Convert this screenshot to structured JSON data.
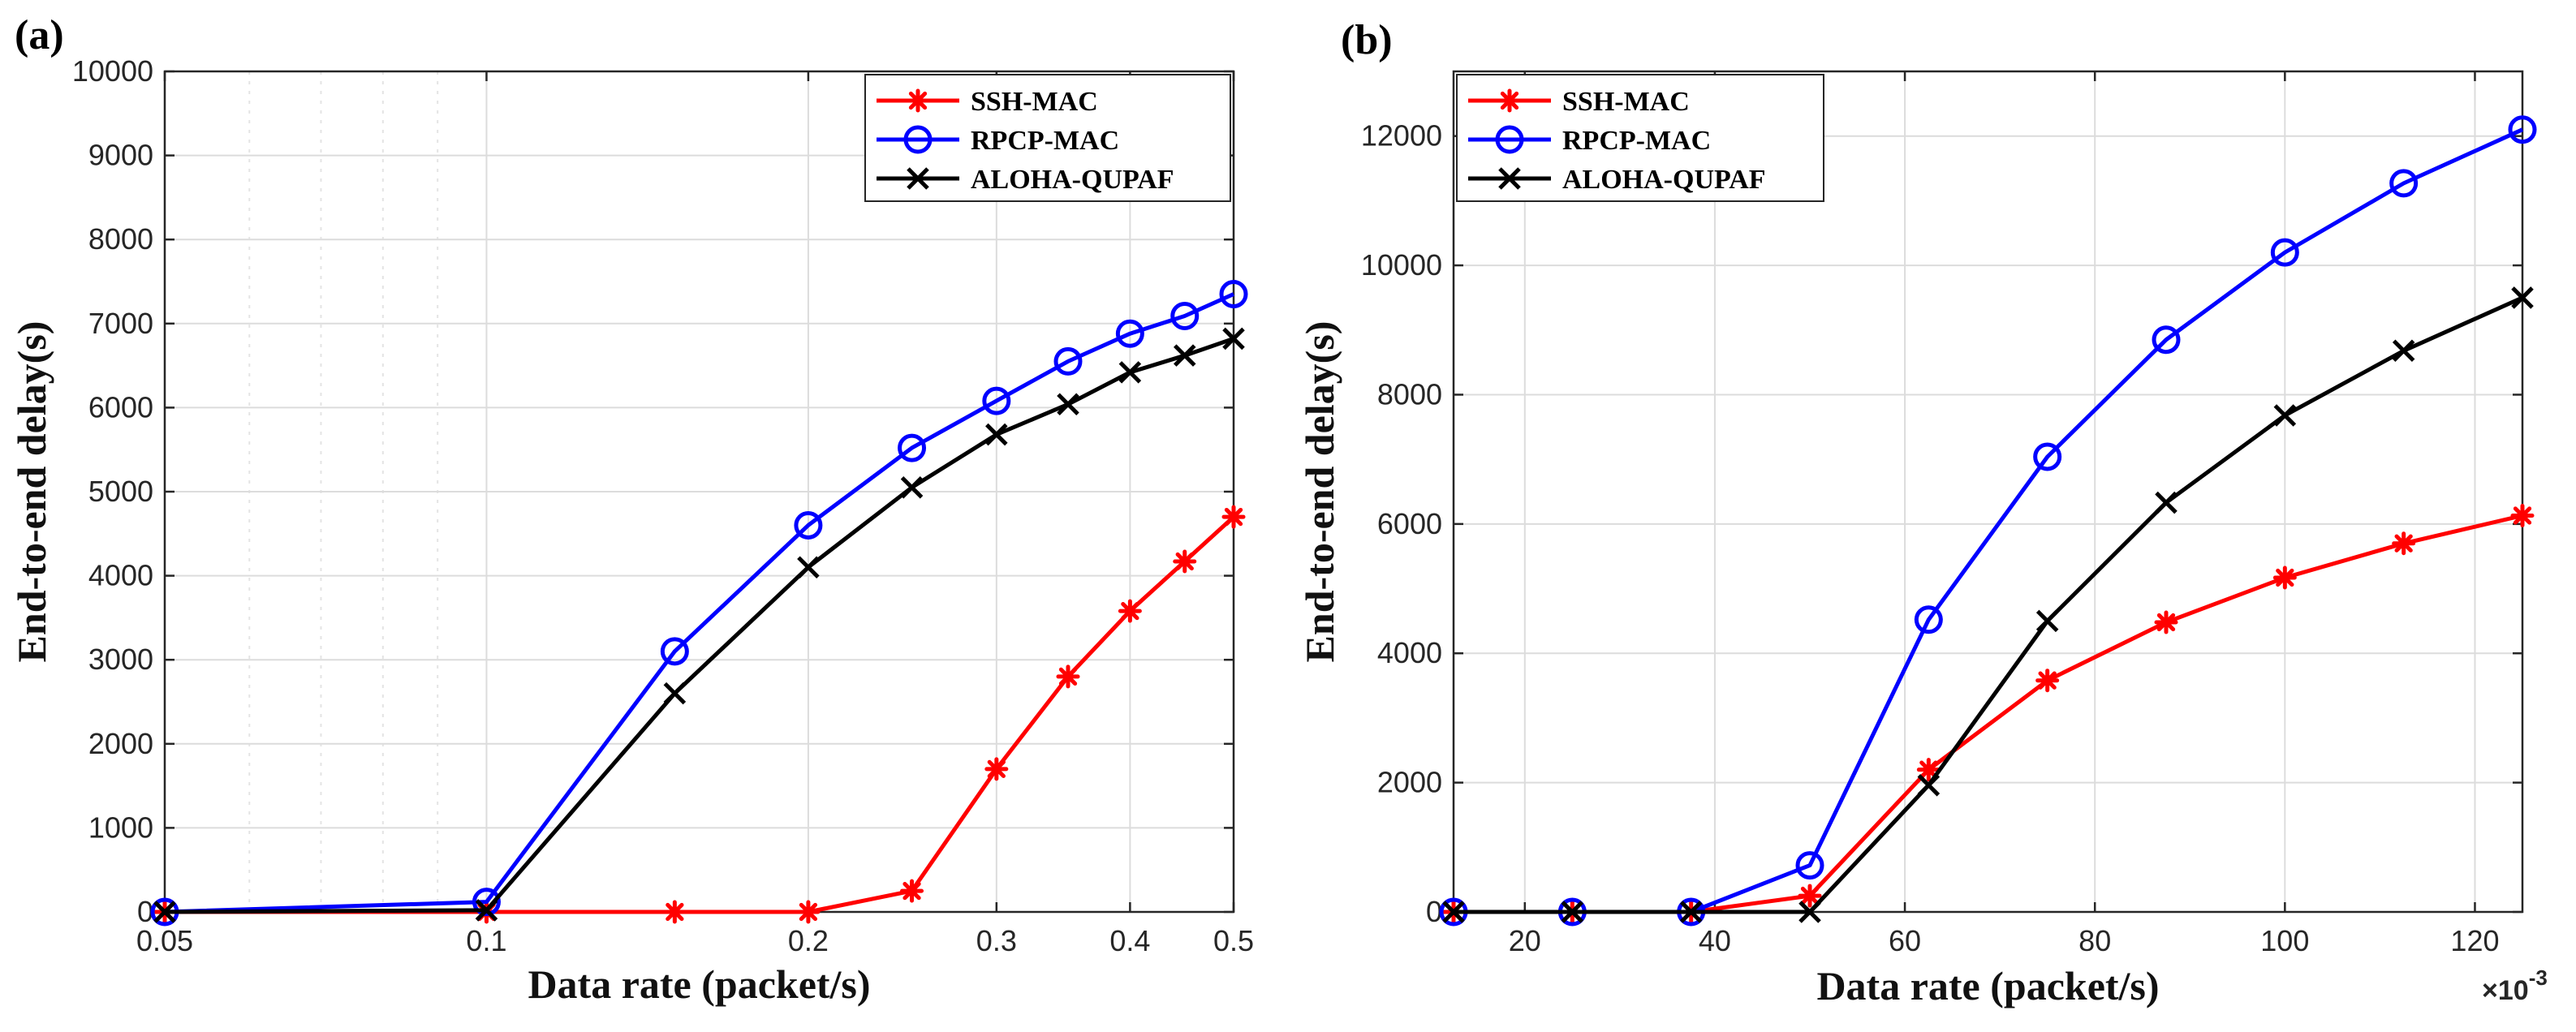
{
  "chart_data": [
    {
      "panel_label": "(a)",
      "type": "line",
      "xscale": "log",
      "xlabel": "Data rate (packet/s)",
      "ylabel": "End-to-end delay(s)",
      "xlim": [
        0.05,
        0.5
      ],
      "ylim": [
        0,
        10000
      ],
      "xticks": [
        0.05,
        0.1,
        0.2,
        0.3,
        0.4,
        0.5
      ],
      "xtick_labels": [
        "0.05",
        "0.1",
        "0.2",
        "0.3",
        "0.4",
        "0.5"
      ],
      "yticks": [
        0,
        1000,
        2000,
        3000,
        4000,
        5000,
        6000,
        7000,
        8000,
        9000,
        10000
      ],
      "ytick_labels": [
        "0",
        "1000",
        "2000",
        "3000",
        "4000",
        "5000",
        "6000",
        "7000",
        "8000",
        "9000",
        "10000"
      ],
      "grid": true,
      "legend_position": "top-right",
      "series": [
        {
          "name": "SSH-MAC",
          "color": "#ff0000",
          "marker": "asterisk",
          "x": [
            0.05,
            0.1,
            0.15,
            0.2,
            0.25,
            0.3,
            0.35,
            0.4,
            0.45,
            0.5
          ],
          "y": [
            0,
            0,
            0,
            0,
            250,
            1700,
            2800,
            3580,
            4170,
            4700
          ]
        },
        {
          "name": "RPCP-MAC",
          "color": "#0000ff",
          "marker": "circle",
          "x": [
            0.05,
            0.1,
            0.15,
            0.2,
            0.25,
            0.3,
            0.35,
            0.4,
            0.45,
            0.5
          ],
          "y": [
            0,
            120,
            3100,
            4600,
            5520,
            6080,
            6550,
            6880,
            7090,
            7350
          ]
        },
        {
          "name": "ALOHA-QUPAF",
          "color": "#000000",
          "marker": "x",
          "x": [
            0.05,
            0.1,
            0.15,
            0.2,
            0.25,
            0.3,
            0.35,
            0.4,
            0.45,
            0.5
          ],
          "y": [
            0,
            20,
            2600,
            4100,
            5050,
            5680,
            6040,
            6420,
            6620,
            6820
          ]
        }
      ]
    },
    {
      "panel_label": "(b)",
      "type": "line",
      "xscale": "linear",
      "xlabel": "Data rate (packet/s)",
      "ylabel": "End-to-end delay(s)",
      "x_exponent_label": "×10",
      "x_exponent_power": "-3",
      "xlim": [
        12.5,
        125
      ],
      "ylim": [
        0,
        13000
      ],
      "xticks": [
        20,
        40,
        60,
        80,
        100,
        120
      ],
      "xtick_labels": [
        "20",
        "40",
        "60",
        "80",
        "100",
        "120"
      ],
      "yticks": [
        0,
        2000,
        4000,
        6000,
        8000,
        10000,
        12000
      ],
      "ytick_labels": [
        "0",
        "2000",
        "4000",
        "6000",
        "8000",
        "10000",
        "12000"
      ],
      "grid": true,
      "legend_position": "top-left",
      "series": [
        {
          "name": "SSH-MAC",
          "color": "#ff0000",
          "marker": "asterisk",
          "x": [
            12.5,
            25,
            37.5,
            50,
            62.5,
            75,
            87.5,
            100,
            112.5,
            125
          ],
          "y": [
            0,
            0,
            0,
            250,
            2200,
            3580,
            4480,
            5170,
            5700,
            6130
          ]
        },
        {
          "name": "RPCP-MAC",
          "color": "#0000ff",
          "marker": "circle",
          "x": [
            12.5,
            25,
            37.5,
            50,
            62.5,
            75,
            87.5,
            100,
            112.5,
            125
          ],
          "y": [
            0,
            0,
            0,
            720,
            4520,
            7040,
            8850,
            10200,
            11270,
            12100
          ]
        },
        {
          "name": "ALOHA-QUPAF",
          "color": "#000000",
          "marker": "x",
          "x": [
            12.5,
            25,
            37.5,
            50,
            62.5,
            75,
            87.5,
            100,
            112.5,
            125
          ],
          "y": [
            0,
            0,
            0,
            0,
            1960,
            4500,
            6330,
            7680,
            8680,
            9500
          ]
        }
      ]
    }
  ]
}
